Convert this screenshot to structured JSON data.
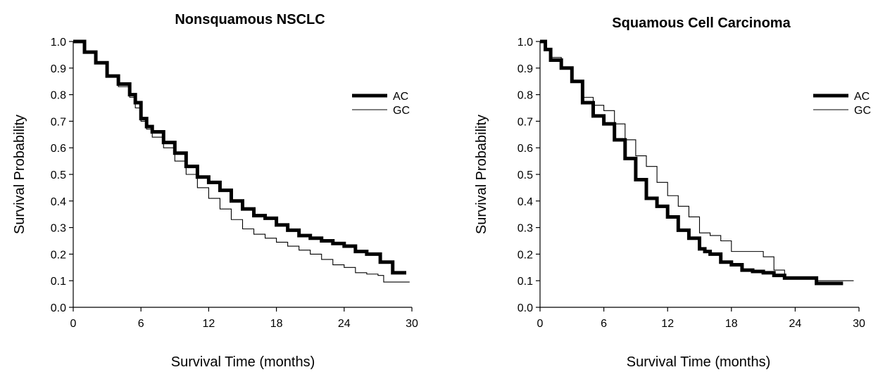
{
  "chart_data": [
    {
      "type": "line",
      "title": "Nonsquamous NSCLC",
      "xlabel": "Survival Time (months)",
      "ylabel": "Survival Probability",
      "xlim": [
        0,
        30
      ],
      "ylim": [
        0.0,
        1.0
      ],
      "xticks": [
        "0",
        "6",
        "12",
        "18",
        "24",
        "30"
      ],
      "yticks": [
        "0.0",
        "0.1",
        "0.2",
        "0.3",
        "0.4",
        "0.5",
        "0.6",
        "0.7",
        "0.8",
        "0.9",
        "1.0"
      ],
      "legend": "top-right",
      "grid": false,
      "series": [
        {
          "name": "AC",
          "style": "thick",
          "color": "#000000",
          "x": [
            0,
            1,
            2,
            3,
            4,
            5,
            5.5,
            6,
            6.5,
            7,
            8,
            9,
            10,
            11,
            12,
            13,
            14,
            15,
            16,
            17,
            18,
            19,
            20,
            21,
            22,
            23,
            24,
            25,
            26,
            27,
            27.2,
            28,
            28.3,
            29.5
          ],
          "y": [
            1.0,
            0.96,
            0.92,
            0.87,
            0.84,
            0.8,
            0.77,
            0.71,
            0.68,
            0.66,
            0.62,
            0.58,
            0.53,
            0.49,
            0.47,
            0.44,
            0.4,
            0.37,
            0.345,
            0.335,
            0.31,
            0.29,
            0.27,
            0.26,
            0.25,
            0.24,
            0.23,
            0.21,
            0.2,
            0.2,
            0.17,
            0.17,
            0.13,
            0.13
          ]
        },
        {
          "name": "GC",
          "style": "thin",
          "color": "#000000",
          "x": [
            0,
            1,
            2,
            3,
            4,
            5,
            5.5,
            6,
            6.5,
            7,
            8,
            9,
            10,
            11,
            12,
            13,
            14,
            15,
            16,
            17,
            18,
            19,
            20,
            21,
            22,
            23,
            24,
            25,
            26,
            27,
            27.5,
            29.8
          ],
          "y": [
            1.0,
            0.96,
            0.92,
            0.87,
            0.83,
            0.79,
            0.75,
            0.7,
            0.67,
            0.64,
            0.6,
            0.55,
            0.5,
            0.45,
            0.41,
            0.37,
            0.33,
            0.295,
            0.275,
            0.26,
            0.245,
            0.23,
            0.215,
            0.2,
            0.18,
            0.16,
            0.15,
            0.13,
            0.125,
            0.12,
            0.095,
            0.095
          ]
        }
      ]
    },
    {
      "type": "line",
      "title": "Squamous Cell Carcinoma",
      "xlabel": "Survival Time (months)",
      "ylabel": "Survival Probability",
      "xlim": [
        0,
        30
      ],
      "ylim": [
        0.0,
        1.0
      ],
      "xticks": [
        "0",
        "6",
        "12",
        "18",
        "24",
        "30"
      ],
      "yticks": [
        "0.0",
        "0.1",
        "0.2",
        "0.3",
        "0.4",
        "0.5",
        "0.6",
        "0.7",
        "0.8",
        "0.9",
        "1.0"
      ],
      "legend": "top-right",
      "grid": false,
      "series": [
        {
          "name": "AC",
          "style": "thick",
          "color": "#000000",
          "x": [
            0,
            0.5,
            1,
            2,
            3,
            4,
            5,
            6,
            7,
            8,
            9,
            10,
            11,
            12,
            13,
            14,
            15,
            15.5,
            16,
            17,
            18,
            19,
            20,
            21,
            22,
            23,
            24,
            25,
            26,
            27,
            28.5
          ],
          "y": [
            1.0,
            0.97,
            0.93,
            0.9,
            0.85,
            0.77,
            0.72,
            0.69,
            0.63,
            0.56,
            0.48,
            0.41,
            0.38,
            0.34,
            0.29,
            0.26,
            0.22,
            0.21,
            0.2,
            0.17,
            0.16,
            0.14,
            0.135,
            0.13,
            0.12,
            0.11,
            0.11,
            0.11,
            0.09,
            0.09,
            0.09
          ]
        },
        {
          "name": "GC",
          "style": "thin",
          "color": "#000000",
          "x": [
            0,
            0.5,
            1,
            2,
            3,
            4,
            5,
            6,
            7,
            8,
            9,
            10,
            11,
            12,
            13,
            14,
            15,
            16,
            17,
            18,
            19,
            20,
            21,
            22,
            23,
            24,
            25,
            26,
            27,
            28,
            29.5
          ],
          "y": [
            1.0,
            0.97,
            0.94,
            0.9,
            0.85,
            0.79,
            0.76,
            0.74,
            0.69,
            0.63,
            0.57,
            0.53,
            0.47,
            0.42,
            0.38,
            0.34,
            0.28,
            0.27,
            0.25,
            0.21,
            0.21,
            0.21,
            0.19,
            0.14,
            0.11,
            0.11,
            0.11,
            0.1,
            0.1,
            0.1,
            0.1
          ]
        }
      ]
    }
  ]
}
